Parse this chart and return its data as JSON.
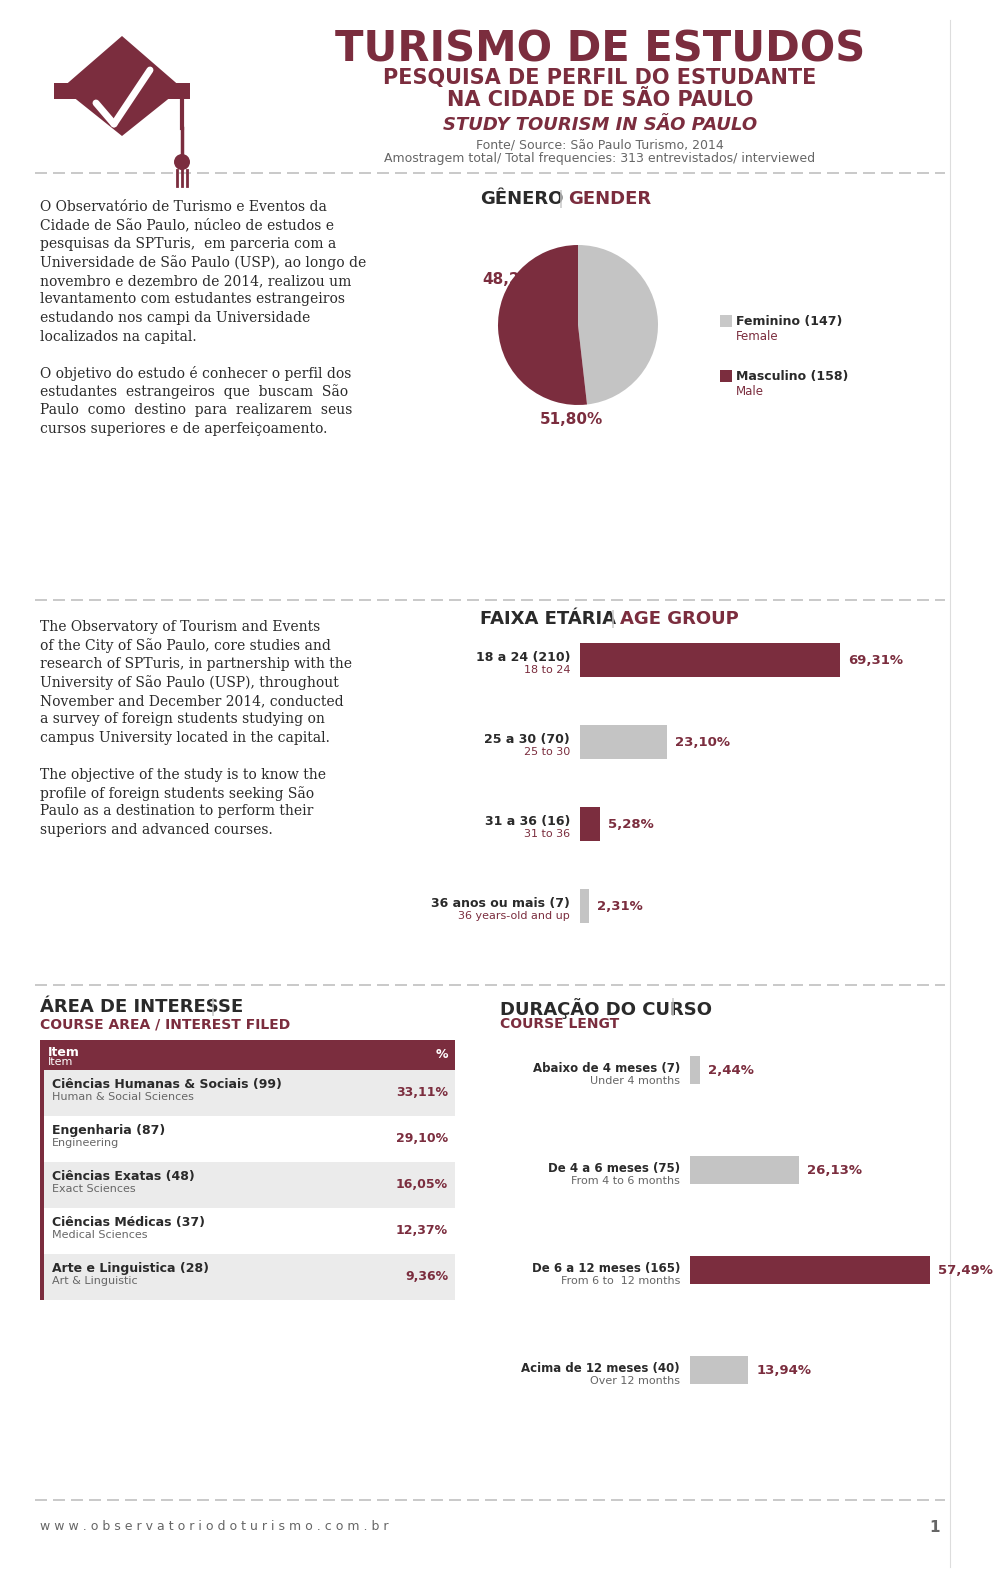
{
  "bg_color": "#ffffff",
  "dark_red": "#7b2d3e",
  "light_gray": "#c8c8c8",
  "text_dark": "#2a2a2a",
  "text_gray": "#666666",
  "title1": "TURISMO DE ESTUDOS",
  "title2": "PESQUISA DE PERFIL DO ESTUDANTE",
  "title3": "NA CIDADE DE SÃO PAULO",
  "title4": "STUDY TOURISM IN SÃO PAULO",
  "source_line1": "Fonte/ Source: São Paulo Turismo, 2014",
  "source_line2": "Amostragem total/ Total frequencies: 313 entrevistados/ interviewed",
  "pt_text1_lines": [
    "O Observatório de Turismo e Eventos da",
    "Cidade de São Paulo, núcleo de estudos e",
    "pesquisas da SPTuris,  em parceria com a",
    "Universidade de São Paulo (USP), ao longo de",
    "novembro e dezembro de 2014, realizou um",
    "levantamento com estudantes estrangeiros",
    "estudando nos campi da Universidade",
    "localizados na capital."
  ],
  "pt_text2_lines": [
    "O objetivo do estudo é conhecer o perfil dos",
    "estudantes  estrangeiros  que  buscam  São",
    "Paulo  como  destino  para  realizarem  seus",
    "cursos superiores e de aperfeiçoamento."
  ],
  "en_text1_lines": [
    "The Observatory of Tourism and Events",
    "of the City of São Paulo, core studies and",
    "research of SPTuris, in partnership with the",
    "University of São Paulo (USP), throughout",
    "November and December 2014, conducted",
    "a survey of foreign students studying on",
    "campus University located in the capital."
  ],
  "en_text2_lines": [
    "The objective of the study is to know the",
    "profile of foreign students seeking São",
    "Paulo as a destination to perform their",
    "superiors and advanced courses."
  ],
  "gender_pt": "GÊNERO",
  "gender_en": "GENDER",
  "pie_values": [
    48.2,
    51.8
  ],
  "pie_colors": [
    "#c4c4c4",
    "#7b2d3e"
  ],
  "pie_pct1": "48,20%",
  "pie_pct2": "51,80%",
  "legend_fem_pt": "Feminino (147)",
  "legend_fem_en": "Female",
  "legend_masc_pt": "Masculino (158)",
  "legend_masc_en": "Male",
  "age_pt": "FAIXA ETÁRIA",
  "age_en": "AGE GROUP",
  "age_rows": [
    {
      "label1": "18 a 24 (210)",
      "label2": "18 to 24",
      "val": 69.31,
      "pct": "69,31%",
      "color": "#7b2d3e"
    },
    {
      "label1": "25 a 30 (70)",
      "label2": "25 to 30",
      "val": 23.1,
      "pct": "23,10%",
      "color": "#c4c4c4"
    },
    {
      "label1": "31 a 36 (16)",
      "label2": "31 to 36",
      "val": 5.28,
      "pct": "5,28%",
      "color": "#7b2d3e"
    },
    {
      "label1": "36 anos ou mais (7)",
      "label2": "36 years-old and up",
      "val": 2.31,
      "pct": "2,31%",
      "color": "#c4c4c4"
    }
  ],
  "area_pt": "ÁREA DE INTERESSE",
  "area_pipe": "|",
  "area_en": "COURSE AREA / INTEREST FILED",
  "area_rows": [
    {
      "pt": "Ciências Humanas & Sociais (99)",
      "en": "Human & Social Sciences",
      "pct": "33,11%"
    },
    {
      "pt": "Engenharia (87)",
      "en": "Engineering",
      "pct": "29,10%"
    },
    {
      "pt": "Ciências Exatas (48)",
      "en": "Exact Sciences",
      "pct": "16,05%"
    },
    {
      "pt": "Ciências Médicas (37)",
      "en": "Medical Sciences",
      "pct": "12,37%"
    },
    {
      "pt": "Arte e Linguistica (28)",
      "en": "Art & Linguistic",
      "pct": "9,36%"
    }
  ],
  "dur_pt": "DURAÇÃO DO CURSO",
  "dur_pipe": "|",
  "dur_en": "COURSE LENGT",
  "dur_rows": [
    {
      "pt": "Abaixo de 4 meses (7)",
      "en": "Under 4 months",
      "pct": "2,44%",
      "val": 2.44,
      "color": "#c4c4c4"
    },
    {
      "pt": "De 4 a 6 meses (75)",
      "en": "From 4 to 6 months",
      "pct": "26,13%",
      "val": 26.13,
      "color": "#c4c4c4"
    },
    {
      "pt": "De 6 a 12 meses (165)",
      "en": "From 6 to  12 months",
      "pct": "57,49%",
      "val": 57.49,
      "color": "#7b2d3e"
    },
    {
      "pt": "Acima de 12 meses (40)",
      "en": "Over 12 months",
      "pct": "13,94%",
      "val": 13.94,
      "color": "#c4c4c4"
    }
  ],
  "footer_url": "w w w . o b s e r v a t o r i o d o t u r i s m o . c o m . b r",
  "footer_page": "1"
}
